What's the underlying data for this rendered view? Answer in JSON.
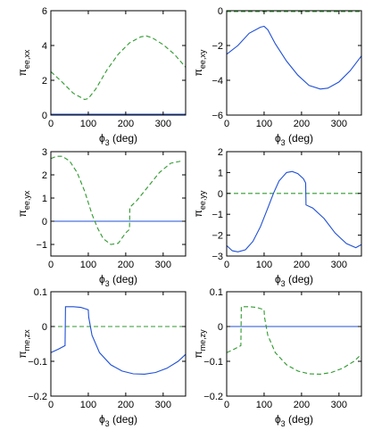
{
  "chart_data": [
    {
      "type": "line",
      "xlabel": "ϕ3 (deg)",
      "ylabel": "πee,xx",
      "xlim": [
        0,
        360
      ],
      "ylim": [
        0,
        6
      ],
      "xticks": [
        0,
        100,
        200,
        300
      ],
      "yticks": [
        0,
        2,
        4,
        6
      ],
      "series": [
        {
          "style": "solid",
          "color": "#1f4fd6",
          "x": [
            0,
            360
          ],
          "y": [
            0.05,
            0.05
          ]
        },
        {
          "style": "dashed",
          "color": "#2f9a2f",
          "x": [
            0,
            30,
            60,
            90,
            100,
            120,
            150,
            180,
            210,
            240,
            255,
            270,
            300,
            330,
            360
          ],
          "y": [
            2.5,
            1.9,
            1.25,
            0.9,
            0.95,
            1.5,
            2.6,
            3.5,
            4.15,
            4.5,
            4.55,
            4.45,
            4.05,
            3.5,
            2.75
          ]
        }
      ]
    },
    {
      "type": "line",
      "xlabel": "ϕ3 (deg)",
      "ylabel": "πee,xy",
      "xlim": [
        0,
        360
      ],
      "ylim": [
        -6,
        0
      ],
      "xticks": [
        0,
        100,
        200,
        300
      ],
      "yticks": [
        -6,
        -4,
        -2,
        0
      ],
      "series": [
        {
          "style": "dashed",
          "color": "#2f9a2f",
          "x": [
            0,
            360
          ],
          "y": [
            -0.05,
            -0.05
          ]
        },
        {
          "style": "solid",
          "color": "#1f4fd6",
          "x": [
            0,
            30,
            60,
            90,
            100,
            110,
            130,
            160,
            190,
            220,
            250,
            270,
            300,
            330,
            360
          ],
          "y": [
            -2.5,
            -2.0,
            -1.3,
            -0.95,
            -0.9,
            -1.1,
            -1.9,
            -2.9,
            -3.7,
            -4.3,
            -4.5,
            -4.45,
            -4.1,
            -3.45,
            -2.6
          ]
        }
      ]
    },
    {
      "type": "line",
      "xlabel": "ϕ3 (deg)",
      "ylabel": "πee,yx",
      "xlim": [
        0,
        360
      ],
      "ylim": [
        -1.5,
        3
      ],
      "xticks": [
        0,
        100,
        200,
        300
      ],
      "yticks": [
        -1,
        0,
        1,
        2,
        3
      ],
      "series": [
        {
          "style": "solid",
          "color": "#1f4fd6",
          "x": [
            0,
            360
          ],
          "y": [
            0,
            0
          ]
        },
        {
          "style": "dashed",
          "color": "#2f9a2f",
          "x": [
            0,
            15,
            30,
            50,
            70,
            90,
            110,
            125,
            140,
            160,
            180,
            200,
            210,
            211,
            230,
            260,
            290,
            320,
            350
          ],
          "y": [
            2.7,
            2.8,
            2.8,
            2.6,
            2.1,
            1.3,
            0.3,
            -0.3,
            -0.75,
            -1.0,
            -0.95,
            -0.5,
            -0.35,
            0.6,
            0.9,
            1.5,
            2.1,
            2.5,
            2.6
          ]
        }
      ]
    },
    {
      "type": "line",
      "xlabel": "ϕ3 (deg)",
      "ylabel": "πee,yy",
      "xlim": [
        0,
        360
      ],
      "ylim": [
        -3,
        2
      ],
      "xticks": [
        0,
        100,
        200,
        300
      ],
      "yticks": [
        -3,
        -2,
        -1,
        0,
        1,
        2
      ],
      "series": [
        {
          "style": "dashed",
          "color": "#2f9a2f",
          "x": [
            0,
            360
          ],
          "y": [
            0,
            0
          ]
        },
        {
          "style": "solid",
          "color": "#1f4fd6",
          "x": [
            0,
            15,
            30,
            50,
            70,
            90,
            110,
            125,
            140,
            160,
            175,
            190,
            205,
            211,
            212,
            230,
            260,
            290,
            320,
            345,
            360
          ],
          "y": [
            -2.5,
            -2.75,
            -2.8,
            -2.7,
            -2.3,
            -1.6,
            -0.7,
            0.0,
            0.6,
            1.0,
            1.05,
            0.95,
            0.7,
            0.5,
            -0.55,
            -0.7,
            -1.2,
            -1.9,
            -2.4,
            -2.6,
            -2.45
          ]
        }
      ]
    },
    {
      "type": "line",
      "xlabel": "ϕ3 (deg)",
      "ylabel": "πme,zx",
      "xlim": [
        0,
        360
      ],
      "ylim": [
        -0.2,
        0.1
      ],
      "xticks": [
        0,
        100,
        200,
        300
      ],
      "yticks": [
        -0.2,
        -0.1,
        0,
        0.1
      ],
      "series": [
        {
          "style": "dashed",
          "color": "#2f9a2f",
          "x": [
            0,
            360
          ],
          "y": [
            0,
            0
          ]
        },
        {
          "style": "solid",
          "color": "#1f4fd6",
          "x": [
            0,
            20,
            38,
            39,
            60,
            80,
            95,
            100,
            101,
            110,
            130,
            160,
            190,
            220,
            250,
            280,
            310,
            340,
            360
          ],
          "y": [
            -0.075,
            -0.065,
            -0.055,
            0.057,
            0.057,
            0.055,
            0.05,
            0.048,
            0.027,
            -0.025,
            -0.075,
            -0.11,
            -0.128,
            -0.136,
            -0.137,
            -0.132,
            -0.12,
            -0.1,
            -0.08
          ]
        }
      ]
    },
    {
      "type": "line",
      "xlabel": "ϕ3 (deg)",
      "ylabel": "πme,zy",
      "xlim": [
        0,
        360
      ],
      "ylim": [
        -0.2,
        0.1
      ],
      "xticks": [
        0,
        100,
        200,
        300
      ],
      "yticks": [
        -0.2,
        -0.1,
        0,
        0.1
      ],
      "series": [
        {
          "style": "solid",
          "color": "#1f4fd6",
          "x": [
            0,
            360
          ],
          "y": [
            0,
            0
          ]
        },
        {
          "style": "dashed",
          "color": "#2f9a2f",
          "x": [
            0,
            20,
            38,
            39,
            60,
            80,
            95,
            100,
            101,
            110,
            130,
            160,
            190,
            220,
            250,
            280,
            310,
            340,
            360
          ],
          "y": [
            -0.075,
            -0.065,
            -0.055,
            0.057,
            0.057,
            0.055,
            0.05,
            0.048,
            0.027,
            -0.025,
            -0.075,
            -0.11,
            -0.128,
            -0.136,
            -0.137,
            -0.132,
            -0.12,
            -0.1,
            -0.08
          ]
        }
      ]
    }
  ]
}
